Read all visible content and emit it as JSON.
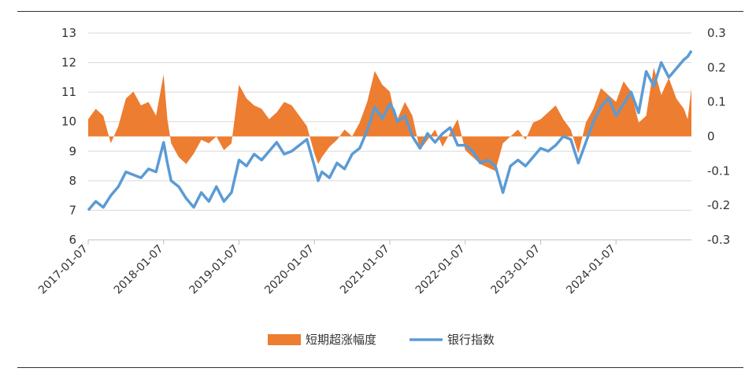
{
  "chart_data": {
    "type": "line",
    "title": "",
    "x_categories": [
      "2017-01-07",
      "2018-01-07",
      "2019-01-07",
      "2020-01-07",
      "2021-01-07",
      "2022-01-07",
      "2023-01-07",
      "2024-01-07"
    ],
    "left_axis": {
      "ylim": [
        6,
        13
      ],
      "ticks": [
        "6",
        "7",
        "8",
        "9",
        "10",
        "11",
        "12",
        "13"
      ]
    },
    "right_axis": {
      "ylim": [
        -0.3,
        0.3
      ],
      "ticks": [
        "-0.3",
        "-0.2",
        "-0.1",
        "0",
        "0.1",
        "0.2",
        "0.3"
      ]
    },
    "grid": true,
    "legend_position": "bottom",
    "series": [
      {
        "name": "短期超涨幅度",
        "type": "area",
        "axis": "right",
        "color": "#ED7D31",
        "x": [
          2017.0,
          2017.1,
          2017.2,
          2017.3,
          2017.4,
          2017.5,
          2017.6,
          2017.7,
          2017.8,
          2017.9,
          2018.0,
          2018.05,
          2018.1,
          2018.2,
          2018.3,
          2018.4,
          2018.5,
          2018.6,
          2018.7,
          2018.8,
          2018.9,
          2019.0,
          2019.1,
          2019.2,
          2019.3,
          2019.4,
          2019.5,
          2019.6,
          2019.7,
          2019.8,
          2019.9,
          2020.0,
          2020.05,
          2020.1,
          2020.2,
          2020.3,
          2020.4,
          2020.5,
          2020.6,
          2020.7,
          2020.8,
          2020.9,
          2021.0,
          2021.05,
          2021.1,
          2021.2,
          2021.3,
          2021.4,
          2021.5,
          2021.6,
          2021.7,
          2021.8,
          2021.9,
          2022.0,
          2022.1,
          2022.2,
          2022.3,
          2022.4,
          2022.5,
          2022.6,
          2022.7,
          2022.8,
          2022.9,
          2023.0,
          2023.1,
          2023.2,
          2023.3,
          2023.4,
          2023.5,
          2023.6,
          2023.7,
          2023.8,
          2023.9,
          2024.0,
          2024.1,
          2024.2,
          2024.3,
          2024.4,
          2024.5,
          2024.6,
          2024.7,
          2024.8,
          2024.9,
          2024.95,
          2025.0
        ],
        "values": [
          0.05,
          0.08,
          0.06,
          -0.02,
          0.03,
          0.11,
          0.13,
          0.09,
          0.1,
          0.06,
          0.18,
          0.05,
          -0.02,
          -0.06,
          -0.08,
          -0.05,
          -0.01,
          -0.02,
          0.0,
          -0.04,
          -0.02,
          0.15,
          0.11,
          0.09,
          0.08,
          0.05,
          0.07,
          0.1,
          0.09,
          0.06,
          0.03,
          -0.05,
          -0.08,
          -0.06,
          -0.03,
          -0.01,
          0.02,
          0.0,
          0.04,
          0.1,
          0.19,
          0.15,
          0.13,
          0.08,
          0.05,
          0.1,
          0.06,
          -0.04,
          -0.01,
          0.02,
          -0.03,
          0.01,
          0.05,
          -0.04,
          -0.06,
          -0.08,
          -0.09,
          -0.1,
          -0.02,
          0.0,
          0.02,
          -0.01,
          0.04,
          0.05,
          0.07,
          0.09,
          0.05,
          0.02,
          -0.05,
          0.04,
          0.08,
          0.14,
          0.12,
          0.1,
          0.16,
          0.13,
          0.04,
          0.06,
          0.2,
          0.12,
          0.17,
          0.11,
          0.08,
          0.05,
          0.14
        ]
      },
      {
        "name": "银行指数",
        "type": "line",
        "axis": "left",
        "color": "#5B9BD5",
        "x": [
          2017.0,
          2017.1,
          2017.2,
          2017.3,
          2017.4,
          2017.5,
          2017.6,
          2017.7,
          2017.8,
          2017.9,
          2018.0,
          2018.05,
          2018.1,
          2018.2,
          2018.3,
          2018.4,
          2018.5,
          2018.6,
          2018.7,
          2018.8,
          2018.9,
          2019.0,
          2019.1,
          2019.2,
          2019.3,
          2019.4,
          2019.5,
          2019.6,
          2019.7,
          2019.8,
          2019.9,
          2020.0,
          2020.05,
          2020.1,
          2020.2,
          2020.3,
          2020.4,
          2020.5,
          2020.6,
          2020.7,
          2020.8,
          2020.9,
          2021.0,
          2021.05,
          2021.1,
          2021.2,
          2021.3,
          2021.4,
          2021.5,
          2021.6,
          2021.7,
          2021.8,
          2021.9,
          2022.0,
          2022.1,
          2022.2,
          2022.3,
          2022.4,
          2022.5,
          2022.6,
          2022.7,
          2022.8,
          2022.9,
          2023.0,
          2023.1,
          2023.2,
          2023.3,
          2023.4,
          2023.5,
          2023.6,
          2023.7,
          2023.8,
          2023.9,
          2024.0,
          2024.1,
          2024.2,
          2024.3,
          2024.4,
          2024.5,
          2024.6,
          2024.7,
          2024.8,
          2024.9,
          2024.95,
          2025.0
        ],
        "values": [
          7.0,
          7.3,
          7.1,
          7.5,
          7.8,
          8.3,
          8.2,
          8.1,
          8.4,
          8.3,
          9.3,
          8.6,
          8.0,
          7.8,
          7.4,
          7.1,
          7.6,
          7.3,
          7.8,
          7.3,
          7.6,
          8.7,
          8.5,
          8.9,
          8.7,
          9.0,
          9.3,
          8.9,
          9.0,
          9.2,
          9.4,
          8.5,
          8.0,
          8.3,
          8.1,
          8.6,
          8.4,
          8.9,
          9.1,
          9.7,
          10.5,
          10.1,
          10.6,
          10.4,
          10.0,
          10.2,
          9.5,
          9.1,
          9.6,
          9.3,
          9.6,
          9.8,
          9.2,
          9.2,
          9.0,
          8.6,
          8.7,
          8.5,
          7.6,
          8.5,
          8.7,
          8.5,
          8.8,
          9.1,
          9.0,
          9.2,
          9.5,
          9.4,
          8.6,
          9.3,
          10.0,
          10.5,
          10.8,
          10.2,
          10.6,
          11.0,
          10.3,
          11.7,
          11.2,
          12.0,
          11.5,
          11.8,
          12.1,
          12.2,
          12.4
        ]
      }
    ]
  }
}
